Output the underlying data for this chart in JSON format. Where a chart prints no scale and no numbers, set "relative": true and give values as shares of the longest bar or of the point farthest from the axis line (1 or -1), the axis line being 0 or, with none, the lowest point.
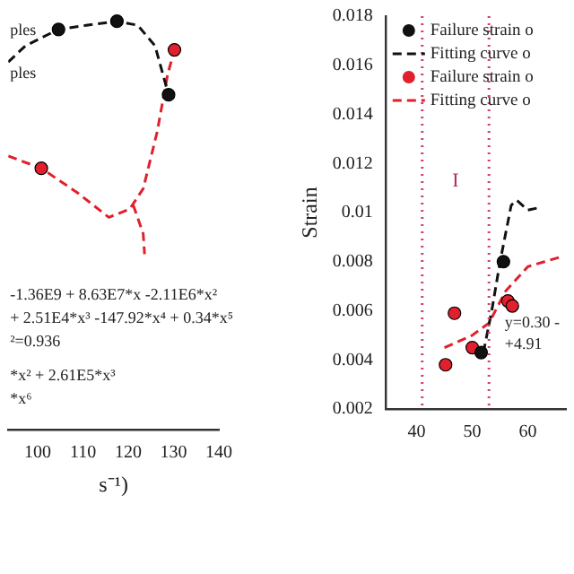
{
  "chart_data": [
    {
      "type": "scatter",
      "relative": true,
      "xlabel": "s⁻¹)",
      "xlim": [
        93.5,
        140
      ],
      "xticks": [
        100,
        110,
        120,
        130,
        140
      ],
      "tick_labels": "x",
      "legend": false,
      "grid": false,
      "annotations": [
        "ples",
        "ples",
        "-1.36E9 + 8.63E7*x -2.11E6*x²",
        "+ 2.51E4*x³ -147.92*x⁴ + 0.34*x⁵",
        "²=0.936",
        "*x² + 2.61E5*x³",
        "*x⁶"
      ],
      "series": [
        {
          "type": "scatter",
          "color": "#111111",
          "marker": "circle",
          "x": [
            104.6,
            117.5,
            128.9
          ],
          "values": [
            0.98,
            1,
            0.82
          ]
        },
        {
          "type": "line",
          "color": "#111111",
          "line_style": "dashed",
          "marker": "none",
          "x": [
            93.5,
            97.3,
            104.6,
            110.7,
            117.5,
            122.1,
            125.9,
            128.9
          ],
          "values": [
            0.9,
            0.94,
            0.98,
            0.99,
            1,
            0.99,
            0.94,
            0.82
          ]
        },
        {
          "type": "scatter",
          "color": "#e0202c",
          "marker": "circle",
          "x": [
            130.2,
            100.8
          ],
          "values": [
            0.93,
            0.64
          ]
        },
        {
          "type": "line",
          "color": "#e0202c",
          "line_style": "dashed",
          "marker": "none",
          "x": [
            93.5,
            100.8,
            108.8,
            115.7,
            120.3,
            123.3,
            126.4,
            128.7,
            130.2
          ],
          "values": [
            0.67,
            0.64,
            0.58,
            0.52,
            0.54,
            0.59,
            0.73,
            0.87,
            0.93
          ]
        },
        {
          "type": "line",
          "color": "#e0202c",
          "line_style": "dashed",
          "marker": "none",
          "x": [
            121.1,
            123.3,
            123.6
          ],
          "values": [
            0.55,
            0.48,
            0.43
          ]
        }
      ]
    },
    {
      "type": "scatter",
      "ylabel": "Strain",
      "xlim": [
        34.4,
        66.8
      ],
      "xticks": [
        40,
        50,
        60
      ],
      "ylim": [
        0.002,
        0.018
      ],
      "yticks": [
        0.002,
        0.004,
        0.006,
        0.008,
        0.01,
        0.012,
        0.014,
        0.016,
        0.018
      ],
      "legend": "top left",
      "grid": false,
      "annotations": [
        "I",
        "y=0.30 -",
        "+4.91"
      ],
      "ref_lines": [
        {
          "axis": "x",
          "value": 41,
          "color": "#d0406a",
          "line_style": "dotted"
        },
        {
          "axis": "x",
          "value": 53,
          "color": "#d0406a",
          "line_style": "dotted"
        }
      ],
      "series": [
        {
          "type": "scatter",
          "name": "Failure strain o",
          "color": "#111111",
          "marker": "circle",
          "x": [
            55.6,
            51.6
          ],
          "values": [
            0.008,
            0.0043
          ]
        },
        {
          "type": "line",
          "name": "Fitting curve o",
          "color": "#111111",
          "line_style": "dashed",
          "marker": "none",
          "x": [
            52,
            53.5,
            55,
            57,
            58,
            60,
            62
          ],
          "values": [
            0.0043,
            0.006,
            0.008,
            0.0103,
            0.0105,
            0.0101,
            0.0102
          ]
        },
        {
          "type": "scatter",
          "name": "Failure strain o",
          "color": "#e0202c",
          "marker": "circle",
          "x": [
            46.8,
            56.4,
            57.2,
            50,
            45.2
          ],
          "values": [
            0.0059,
            0.0064,
            0.0062,
            0.0045,
            0.0038
          ]
        },
        {
          "type": "line",
          "name": "Fitting curve o",
          "color": "#e0202c",
          "line_style": "dashed",
          "marker": "none",
          "x": [
            45,
            50,
            53,
            56,
            60,
            63,
            66
          ],
          "values": [
            0.0045,
            0.005,
            0.0055,
            0.0068,
            0.0078,
            0.008,
            0.0082
          ]
        }
      ]
    }
  ]
}
